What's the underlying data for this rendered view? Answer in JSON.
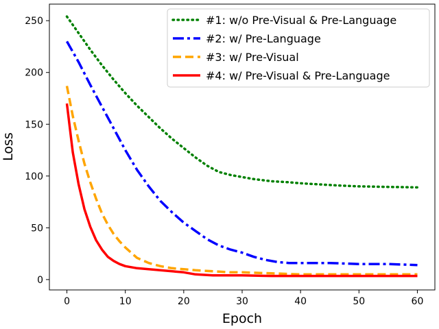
{
  "chart_data": {
    "type": "line",
    "title": "",
    "xlabel": "Epoch",
    "ylabel": "Loss",
    "xlim": [
      -3,
      63
    ],
    "ylim": [
      -10,
      266
    ],
    "xticks": [
      0,
      10,
      20,
      30,
      40,
      50,
      60
    ],
    "yticks": [
      0,
      50,
      100,
      150,
      200,
      250
    ],
    "grid": false,
    "legend_position": "top-right",
    "series": [
      {
        "name": "#1: w/o Pre-Visual & Pre-Language",
        "color": "#008000",
        "style": "dotted",
        "x": [
          0,
          2,
          4,
          6,
          8,
          10,
          12,
          14,
          16,
          18,
          20,
          22,
          24,
          26,
          28,
          30,
          32,
          35,
          38,
          40,
          43,
          46,
          50,
          55,
          60
        ],
        "y": [
          254,
          238,
          222,
          207,
          193,
          180,
          168,
          157,
          146,
          136,
          127,
          118,
          110,
          104,
          101,
          99,
          97,
          95,
          94,
          93,
          92,
          91,
          90,
          89.5,
          89
        ]
      },
      {
        "name": "#2: w/ Pre-Language",
        "color": "#0000ff",
        "style": "dashdot",
        "x": [
          0,
          2,
          4,
          6,
          8,
          10,
          12,
          14,
          16,
          18,
          20,
          22,
          24,
          26,
          28,
          30,
          32,
          34,
          36,
          38,
          40,
          45,
          50,
          55,
          60
        ],
        "y": [
          230,
          210,
          188,
          167,
          146,
          125,
          106,
          90,
          76,
          65,
          55,
          47,
          39,
          33,
          29,
          26,
          22,
          19,
          17,
          16,
          16,
          16,
          15,
          15,
          14
        ]
      },
      {
        "name": "#3: w/ Pre-Visual",
        "color": "#ffa500",
        "style": "dashed",
        "x": [
          0,
          1,
          2,
          3,
          4,
          5,
          6,
          7,
          8,
          9,
          10,
          12,
          14,
          16,
          18,
          20,
          22,
          25,
          28,
          30,
          35,
          40,
          45,
          50,
          55,
          60
        ],
        "y": [
          187,
          158,
          134,
          112,
          94,
          78,
          64,
          53,
          44,
          37,
          31,
          21,
          16,
          13,
          11,
          10,
          9,
          8,
          7,
          7,
          6,
          5,
          5,
          5,
          5,
          5
        ]
      },
      {
        "name": "#4: w/ Pre-Visual & Pre-Language",
        "color": "#ff0000",
        "style": "solid",
        "x": [
          0,
          1,
          2,
          3,
          4,
          5,
          6,
          7,
          8,
          9,
          10,
          11,
          12,
          13,
          14,
          16,
          18,
          20,
          22,
          25,
          30,
          35,
          40,
          45,
          50,
          55,
          60
        ],
        "y": [
          170,
          123,
          92,
          68,
          51,
          38,
          29,
          22,
          18,
          15,
          13,
          12,
          11,
          10.5,
          10,
          9,
          8,
          7,
          5,
          4,
          4,
          3.5,
          3.5,
          3.5,
          3.5,
          3.5,
          3.5
        ]
      }
    ]
  }
}
